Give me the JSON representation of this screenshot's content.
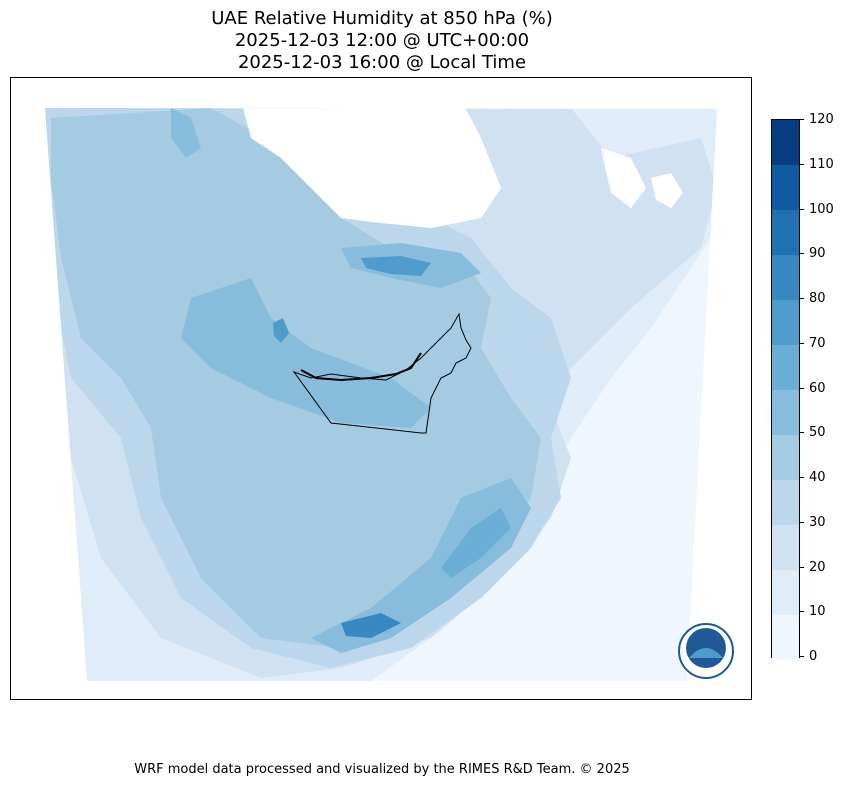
{
  "title": {
    "line1": "UAE Relative Humidity at 850 hPa (%)",
    "line2": "2025-12-03 12:00 @ UTC+00:00",
    "line3": "2025-12-03 16:00 @ Local Time"
  },
  "colorbar": {
    "ticks": [
      "0",
      "10",
      "20",
      "30",
      "40",
      "50",
      "60",
      "70",
      "80",
      "90",
      "100",
      "110",
      "120"
    ],
    "colors": [
      "#f0f6fd",
      "#e0ecf8",
      "#d0e2f2",
      "#bcd7eb",
      "#a5cbe3",
      "#87bcdc",
      "#6aaed6",
      "#4f9bcb",
      "#3888c1",
      "#2070b4",
      "#0f5aa3",
      "#083c80"
    ]
  },
  "map": {
    "region": "United Arab Emirates",
    "logo": {
      "name": "rimes-logo",
      "text": "RIMES"
    }
  },
  "footer": "WRF model data processed and visualized by the RIMES R&D Team. © 2025"
}
